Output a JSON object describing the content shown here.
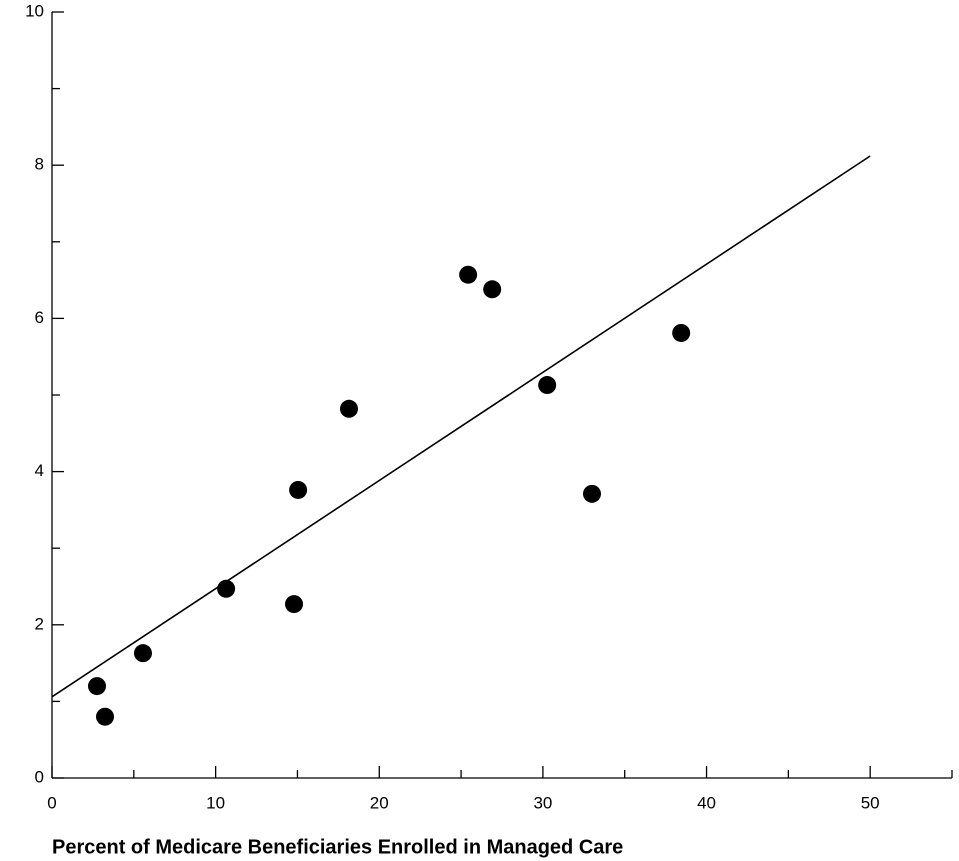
{
  "chart_data": {
    "type": "scatter",
    "x_label": "Percent of Medicare Beneficiaries Enrolled in Managed Care",
    "x": [
      2.75,
      3.24,
      5.56,
      10.64,
      14.79,
      15.04,
      18.15,
      25.43,
      26.9,
      30.26,
      33.0,
      38.45
    ],
    "values": [
      1.2,
      0.8,
      1.63,
      2.47,
      2.27,
      3.76,
      4.82,
      6.57,
      6.38,
      5.13,
      3.71,
      5.81
    ],
    "color": "#000000",
    "trendline": {
      "x": [
        0,
        50
      ],
      "y": [
        1.06,
        8.12
      ]
    },
    "xlim": [
      0,
      55
    ],
    "ylim": [
      0,
      10
    ],
    "xticks": [
      0,
      10,
      20,
      30,
      40,
      50
    ],
    "yticks": [
      0,
      2,
      4,
      6,
      8,
      10
    ],
    "xminorticks": [
      5,
      15,
      25,
      35,
      45,
      55
    ],
    "yminorticks": [
      1,
      3,
      5,
      7,
      9
    ],
    "grid": false
  }
}
